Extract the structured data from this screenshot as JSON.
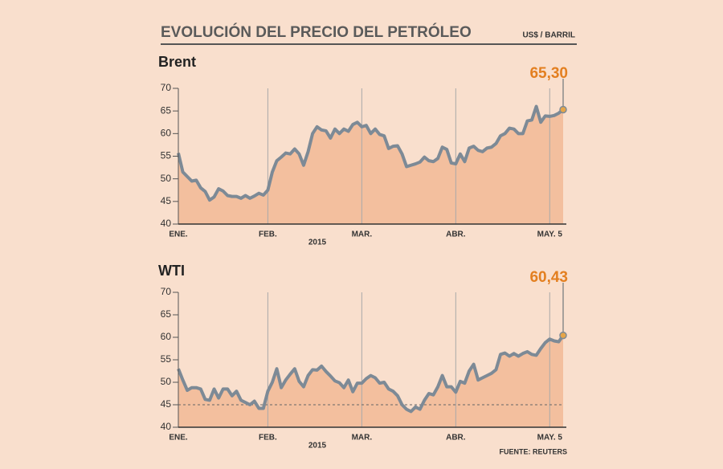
{
  "header": {
    "title": "EVOLUCIÓN DEL PRECIO DEL PETRÓLEO",
    "unit": "US$ / BARRIL"
  },
  "source": "FUENTE: REUTERS",
  "chart_data": [
    {
      "type": "area",
      "title": "Brent",
      "xlabel": "2015",
      "categories": [
        "ENE.",
        null,
        null,
        null,
        null,
        null,
        null,
        null,
        null,
        null,
        null,
        null,
        null,
        null,
        null,
        null,
        null,
        null,
        null,
        null,
        "FEB.",
        null,
        null,
        null,
        null,
        null,
        null,
        null,
        null,
        null,
        null,
        null,
        null,
        null,
        null,
        null,
        null,
        null,
        null,
        null,
        null,
        "MAR.",
        null,
        null,
        null,
        null,
        null,
        null,
        null,
        null,
        null,
        null,
        null,
        null,
        null,
        null,
        null,
        null,
        null,
        null,
        null,
        null,
        "ABR.",
        null,
        null,
        null,
        null,
        null,
        null,
        null,
        null,
        null,
        null,
        null,
        null,
        null,
        null,
        null,
        null,
        null,
        null,
        null,
        null,
        "MAY. 5",
        null,
        null,
        null
      ],
      "series": [
        {
          "name": "Brent",
          "color": "#7d8a96",
          "fill": "#f3bf9e",
          "values": [
            55.7,
            51.5,
            50.5,
            49.5,
            49.7,
            48,
            47.2,
            45.3,
            46,
            47.8,
            47.3,
            46.3,
            46.1,
            46.1,
            45.7,
            46.3,
            45.7,
            46.2,
            46.8,
            46.4,
            47.5,
            51.5,
            54,
            54.8,
            55.7,
            55.5,
            56.6,
            55.5,
            53,
            56,
            60,
            61.5,
            60.8,
            60.6,
            59,
            61,
            60,
            61,
            60.5,
            62,
            62.5,
            61.5,
            61.8,
            60,
            61,
            59.8,
            59.5,
            56.7,
            57.2,
            57.3,
            55.5,
            52.7,
            53,
            53.3,
            53.7,
            54.8,
            54,
            53.8,
            54.5,
            57,
            56.5,
            53.5,
            53.3,
            55.5,
            53.8,
            56.8,
            57.2,
            56.3,
            56,
            56.8,
            57,
            57.8,
            59.5,
            60,
            61.2,
            61,
            60,
            60,
            62.8,
            63,
            66,
            62.5,
            63.9,
            63.8,
            64,
            64.5,
            65.3
          ],
          "value_labels": [
            null,
            null,
            null,
            null,
            null,
            null,
            null,
            null,
            null,
            null,
            null,
            null,
            null,
            null,
            null,
            null,
            null,
            null,
            null,
            null,
            null,
            null,
            null,
            null,
            null,
            null,
            null,
            null,
            null,
            null,
            null,
            null,
            null,
            null,
            null,
            null,
            null,
            null,
            null,
            null,
            null,
            null,
            null,
            null,
            null,
            null,
            null,
            null,
            null,
            null,
            null,
            null,
            null,
            null,
            null,
            null,
            null,
            null,
            null,
            null,
            null,
            null,
            null,
            null,
            null,
            null,
            null,
            null,
            null,
            null,
            null,
            null,
            null,
            null,
            null,
            null,
            null,
            null,
            null,
            null,
            null,
            null,
            null,
            null,
            null,
            null,
            "65,30"
          ]
        }
      ],
      "label_color": "#e37f20",
      "ylim": [
        40,
        70
      ],
      "yticks": [
        40,
        45,
        50,
        55,
        60,
        65,
        70
      ],
      "hlines": []
    },
    {
      "type": "area",
      "title": "WTI",
      "xlabel": "2015",
      "categories": [
        "ENE.",
        null,
        null,
        null,
        null,
        null,
        null,
        null,
        null,
        null,
        null,
        null,
        null,
        null,
        null,
        null,
        null,
        null,
        null,
        null,
        "FEB.",
        null,
        null,
        null,
        null,
        null,
        null,
        null,
        null,
        null,
        null,
        null,
        null,
        null,
        null,
        null,
        null,
        null,
        null,
        null,
        null,
        "MAR.",
        null,
        null,
        null,
        null,
        null,
        null,
        null,
        null,
        null,
        null,
        null,
        null,
        null,
        null,
        null,
        null,
        null,
        null,
        null,
        null,
        "ABR.",
        null,
        null,
        null,
        null,
        null,
        null,
        null,
        null,
        null,
        null,
        null,
        null,
        null,
        null,
        null,
        null,
        null,
        null,
        null,
        null,
        "MAY. 5",
        null,
        null,
        null
      ],
      "series": [
        {
          "name": "WTI",
          "color": "#7d8a96",
          "fill": "#f3bf9e",
          "values": [
            53,
            50.5,
            48.2,
            48.8,
            48.8,
            48.5,
            46.2,
            46,
            48.5,
            46.5,
            48.5,
            48.5,
            47,
            48,
            46,
            45.5,
            45,
            45.8,
            44.2,
            44.2,
            48,
            50,
            53,
            48.8,
            50.5,
            51.8,
            53,
            50.2,
            49,
            51.5,
            52.8,
            52.7,
            53.6,
            52.4,
            51.4,
            50.3,
            49.9,
            48.8,
            50.5,
            47.9,
            49.8,
            49.8,
            50.8,
            51.5,
            51,
            49.8,
            50,
            48.5,
            48,
            47,
            45,
            44,
            43.5,
            44.5,
            44,
            46,
            47.5,
            47.2,
            49,
            51.5,
            49,
            49,
            47.8,
            50.2,
            49.8,
            52.5,
            54,
            50.5,
            51,
            51.5,
            52,
            52.8,
            56.2,
            56.5,
            55.8,
            56.4,
            55.8,
            56.4,
            56.8,
            56.2,
            56,
            57.5,
            58.8,
            59.6,
            59.2,
            59,
            60.43
          ],
          "value_labels": [
            null,
            null,
            null,
            null,
            null,
            null,
            null,
            null,
            null,
            null,
            null,
            null,
            null,
            null,
            null,
            null,
            null,
            null,
            null,
            null,
            null,
            null,
            null,
            null,
            null,
            null,
            null,
            null,
            null,
            null,
            null,
            null,
            null,
            null,
            null,
            null,
            null,
            null,
            null,
            null,
            null,
            null,
            null,
            null,
            null,
            null,
            null,
            null,
            null,
            null,
            null,
            null,
            null,
            null,
            null,
            null,
            null,
            null,
            null,
            null,
            null,
            null,
            null,
            null,
            null,
            null,
            null,
            null,
            null,
            null,
            null,
            null,
            null,
            null,
            null,
            null,
            null,
            null,
            null,
            null,
            null,
            null,
            null,
            null,
            null,
            null,
            "60,43"
          ]
        }
      ],
      "label_color": "#e37f20",
      "ylim": [
        40,
        70
      ],
      "yticks": [
        40,
        45,
        50,
        55,
        60,
        65,
        70
      ],
      "hlines": [
        45
      ]
    }
  ]
}
